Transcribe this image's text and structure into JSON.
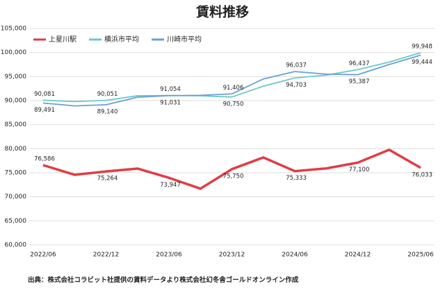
{
  "chart_data": {
    "type": "line",
    "title": "賃料推移",
    "categories": [
      "2022/06",
      null,
      "2022/12",
      null,
      "2023/06",
      null,
      "2023/12",
      null,
      "2024/06",
      null,
      "2024/12",
      null,
      "2025/06"
    ],
    "ylim": [
      60000,
      105000
    ],
    "yticks": [
      {
        "value": 60000,
        "label": "60,000"
      },
      {
        "value": 65000,
        "label": "65,000"
      },
      {
        "value": 70000,
        "label": "70,000"
      },
      {
        "value": 75000,
        "label": "75,000"
      },
      {
        "value": 80000,
        "label": "80,000"
      },
      {
        "value": 85000,
        "label": "85,000"
      },
      {
        "value": 90000,
        "label": "90,000"
      },
      {
        "value": 95000,
        "label": "95,000"
      },
      {
        "value": 100000,
        "label": "100,000"
      },
      {
        "value": 105000,
        "label": "105,000"
      }
    ],
    "grid": true,
    "legend": "top-left",
    "series": [
      {
        "name": "上星川駅",
        "color": "#e23b44",
        "values": [
          76586,
          74570,
          75264,
          75870,
          73947,
          71690,
          75750,
          78180,
          75333,
          75900,
          77100,
          79770,
          76033
        ],
        "value_labels": [
          "76,586",
          null,
          "75,264",
          null,
          "73,947",
          null,
          "75,750",
          null,
          "75,333",
          null,
          "77,100",
          null,
          "76,033"
        ]
      },
      {
        "name": "横浜市平均",
        "color": "#6cc8c8",
        "values": [
          90081,
          89800,
          90051,
          91000,
          91054,
          91000,
          90750,
          93000,
          94703,
          95300,
          96437,
          98000,
          99948
        ],
        "value_labels": [
          "90,081",
          null,
          "90,051",
          null,
          "91,054",
          null,
          "90,750",
          null,
          "94,703",
          null,
          "96,437",
          null,
          "99,948"
        ]
      },
      {
        "name": "川崎市平均",
        "color": "#6a9fd4",
        "values": [
          89491,
          88900,
          89140,
          90700,
          91031,
          91100,
          91406,
          94500,
          96037,
          95500,
          95387,
          97500,
          99444
        ],
        "value_labels": [
          "89,491",
          null,
          "89,140",
          null,
          "91,031",
          null,
          "91,406",
          null,
          "96,037",
          null,
          "95,387",
          null,
          "99,444"
        ]
      }
    ],
    "source": "出典：株式会社コラビット社提供の賃料データより株式会社幻冬舎ゴールドオンライン作成"
  }
}
